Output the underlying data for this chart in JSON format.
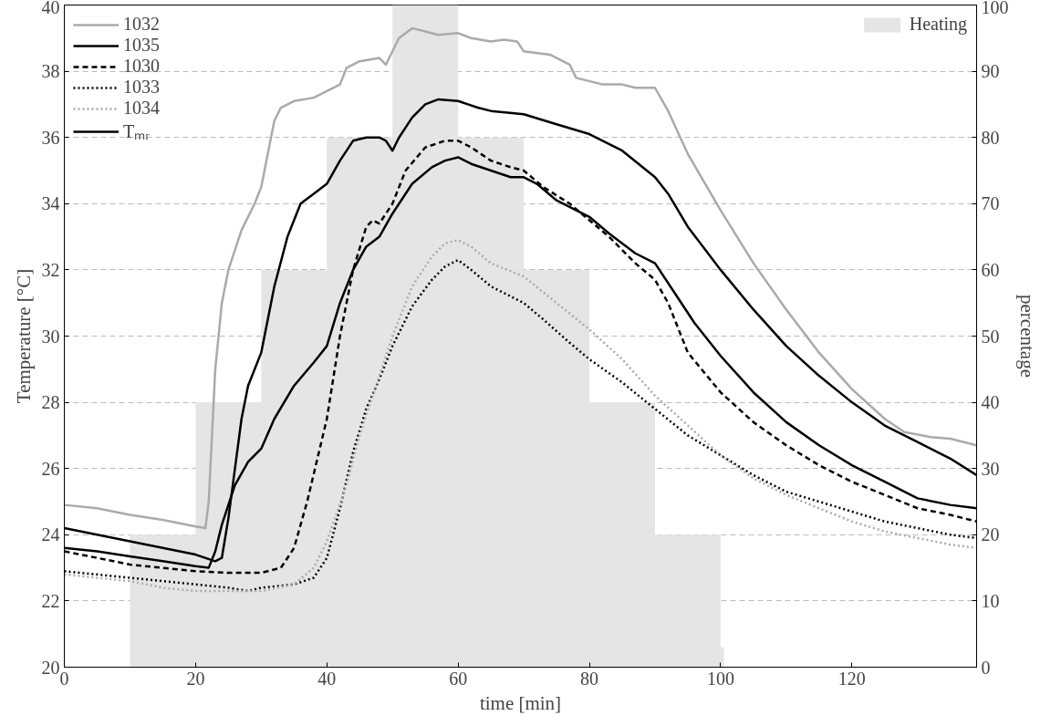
{
  "chart_data": {
    "type": "line",
    "xlabel": "time [min]",
    "ylabel": "Temperature [°C]",
    "y2label": "percentage",
    "xlim": [
      0,
      139
    ],
    "xticks": [
      0,
      20,
      40,
      60,
      80,
      100,
      120
    ],
    "ylim": [
      20,
      40
    ],
    "yticks": [
      20,
      22,
      24,
      26,
      28,
      30,
      32,
      34,
      36,
      38,
      40
    ],
    "y2lim": [
      0,
      100
    ],
    "y2ticks": [
      0,
      10,
      20,
      30,
      40,
      50,
      60,
      70,
      80,
      90,
      100
    ],
    "grid": "y",
    "legend": "top left",
    "series": [
      {
        "name": "Heating",
        "type": "area",
        "axis": "y2",
        "color": "#e5e5e5",
        "x": [
          10,
          10,
          20,
          20,
          30,
          30,
          40,
          40,
          50,
          50,
          60,
          60,
          70,
          70,
          80,
          80,
          90,
          90,
          100,
          100,
          100.5,
          100.5
        ],
        "values": [
          0,
          20,
          20,
          40,
          40,
          60,
          60,
          80,
          80,
          100,
          100,
          80,
          80,
          60,
          60,
          40,
          40,
          20,
          20,
          3,
          3,
          0
        ]
      },
      {
        "name": "1032",
        "color": "#aaaaaa",
        "line_style": "solid",
        "x": [
          0,
          5,
          10,
          15,
          20,
          21.5,
          22,
          23,
          24,
          25,
          27,
          29,
          30,
          31,
          32,
          33,
          35,
          38,
          40,
          42,
          43,
          45,
          48,
          49,
          50,
          51,
          53,
          55,
          57,
          60,
          62,
          65,
          67,
          69,
          70,
          74,
          77,
          78,
          82,
          85,
          87,
          90,
          92,
          95,
          100,
          105,
          110,
          115,
          120,
          125,
          128,
          132,
          135,
          139
        ],
        "values": [
          24.9,
          24.8,
          24.6,
          24.45,
          24.25,
          24.2,
          25,
          29,
          31,
          32,
          33.2,
          34,
          34.5,
          35.5,
          36.5,
          36.9,
          37.1,
          37.2,
          37.4,
          37.6,
          38.1,
          38.3,
          38.4,
          38.2,
          38.6,
          39,
          39.3,
          39.2,
          39.1,
          39.15,
          39,
          38.9,
          38.95,
          38.9,
          38.6,
          38.5,
          38.2,
          37.8,
          37.6,
          37.6,
          37.5,
          37.5,
          36.8,
          35.5,
          33.8,
          32.2,
          30.8,
          29.5,
          28.4,
          27.5,
          27.1,
          26.95,
          26.9,
          26.7
        ]
      },
      {
        "name": "1035",
        "color": "#000000",
        "line_style": "solid",
        "x": [
          0,
          5,
          10,
          15,
          20,
          23,
          24,
          25,
          26,
          27,
          28,
          30,
          32,
          34,
          36,
          38,
          40,
          42,
          44,
          46,
          48,
          49,
          50,
          51,
          53,
          55,
          57,
          60,
          63,
          65,
          70,
          75,
          80,
          85,
          90,
          92,
          95,
          100,
          105,
          110,
          115,
          120,
          125,
          130,
          135,
          139
        ],
        "values": [
          24.2,
          24,
          23.8,
          23.6,
          23.4,
          23.2,
          23.3,
          24.5,
          26,
          27.5,
          28.5,
          29.5,
          31.5,
          33,
          34,
          34.3,
          34.6,
          35.3,
          35.9,
          36,
          36,
          35.9,
          35.6,
          36,
          36.6,
          37,
          37.15,
          37.1,
          36.9,
          36.8,
          36.7,
          36.4,
          36.1,
          35.6,
          34.8,
          34.3,
          33.3,
          32,
          30.8,
          29.7,
          28.8,
          28,
          27.3,
          26.8,
          26.3,
          25.8
        ]
      },
      {
        "name": "1030",
        "color": "#000000",
        "line_style": "dashed",
        "x": [
          0,
          5,
          10,
          15,
          20,
          25,
          30,
          33,
          35,
          37,
          40,
          42,
          44,
          46,
          47,
          48,
          50,
          52,
          55,
          58,
          60,
          62,
          65,
          68,
          70,
          73,
          77,
          80,
          83,
          87,
          90,
          92,
          95,
          100,
          105,
          110,
          115,
          120,
          125,
          130,
          135,
          139
        ],
        "values": [
          23.5,
          23.3,
          23.1,
          23,
          22.9,
          22.85,
          22.85,
          23,
          23.6,
          25,
          27.5,
          30,
          32,
          33.3,
          33.5,
          33.4,
          34,
          35,
          35.7,
          35.9,
          35.9,
          35.7,
          35.3,
          35.1,
          35,
          34.5,
          34,
          33.5,
          33,
          32.2,
          31.7,
          31,
          29.5,
          28.3,
          27.4,
          26.7,
          26.1,
          25.6,
          25.2,
          24.8,
          24.6,
          24.4
        ]
      },
      {
        "name": "1033",
        "color": "#000000",
        "line_style": "dotted",
        "x": [
          0,
          5,
          10,
          15,
          20,
          25,
          28,
          30,
          35,
          38,
          40,
          42,
          44,
          46,
          48,
          50,
          53,
          56,
          58,
          60,
          62,
          65,
          70,
          73,
          77,
          80,
          85,
          90,
          95,
          100,
          105,
          110,
          115,
          120,
          125,
          130,
          135,
          139
        ],
        "values": [
          22.9,
          22.8,
          22.7,
          22.6,
          22.5,
          22.4,
          22.3,
          22.4,
          22.5,
          22.7,
          23.3,
          24.8,
          26.5,
          27.8,
          28.7,
          29.7,
          30.9,
          31.7,
          32.1,
          32.3,
          32,
          31.5,
          31,
          30.5,
          29.8,
          29.3,
          28.6,
          27.8,
          27,
          26.4,
          25.8,
          25.3,
          25,
          24.7,
          24.4,
          24.2,
          24,
          23.9
        ]
      },
      {
        "name": "1034",
        "color": "#aaaaaa",
        "line_style": "dotted",
        "x": [
          0,
          5,
          10,
          15,
          20,
          25,
          30,
          35,
          38,
          40,
          43,
          45,
          48,
          50,
          53,
          56,
          58,
          60,
          62,
          65,
          70,
          75,
          80,
          85,
          90,
          95,
          100,
          105,
          110,
          115,
          120,
          125,
          130,
          135,
          139
        ],
        "values": [
          22.8,
          22.7,
          22.6,
          22.4,
          22.3,
          22.3,
          22.3,
          22.5,
          23,
          23.8,
          25.5,
          27,
          28.8,
          30,
          31.5,
          32.4,
          32.8,
          32.9,
          32.7,
          32.2,
          31.8,
          31,
          30.2,
          29.3,
          28.2,
          27.3,
          26.4,
          25.7,
          25.2,
          24.8,
          24.4,
          24.1,
          23.9,
          23.7,
          23.6
        ]
      },
      {
        "name": "Tₘᵣ",
        "color": "#000000",
        "line_style": "solid",
        "x": [
          0,
          5,
          10,
          15,
          20,
          22,
          23,
          24,
          26,
          28,
          30,
          32,
          35,
          38,
          40,
          42,
          44,
          46,
          48,
          50,
          53,
          56,
          58,
          60,
          62,
          65,
          68,
          70,
          72,
          75,
          80,
          83,
          87,
          90,
          93,
          96,
          100,
          105,
          110,
          115,
          120,
          125,
          130,
          135,
          139
        ],
        "values": [
          23.6,
          23.5,
          23.35,
          23.2,
          23.05,
          23,
          23.5,
          24.3,
          25.5,
          26.2,
          26.6,
          27.5,
          28.5,
          29.2,
          29.7,
          31,
          32,
          32.7,
          33,
          33.7,
          34.6,
          35.1,
          35.3,
          35.4,
          35.2,
          35,
          34.8,
          34.8,
          34.6,
          34.1,
          33.6,
          33.1,
          32.5,
          32.2,
          31.3,
          30.4,
          29.4,
          28.3,
          27.4,
          26.7,
          26.1,
          25.6,
          25.1,
          24.9,
          24.8
        ]
      }
    ]
  }
}
